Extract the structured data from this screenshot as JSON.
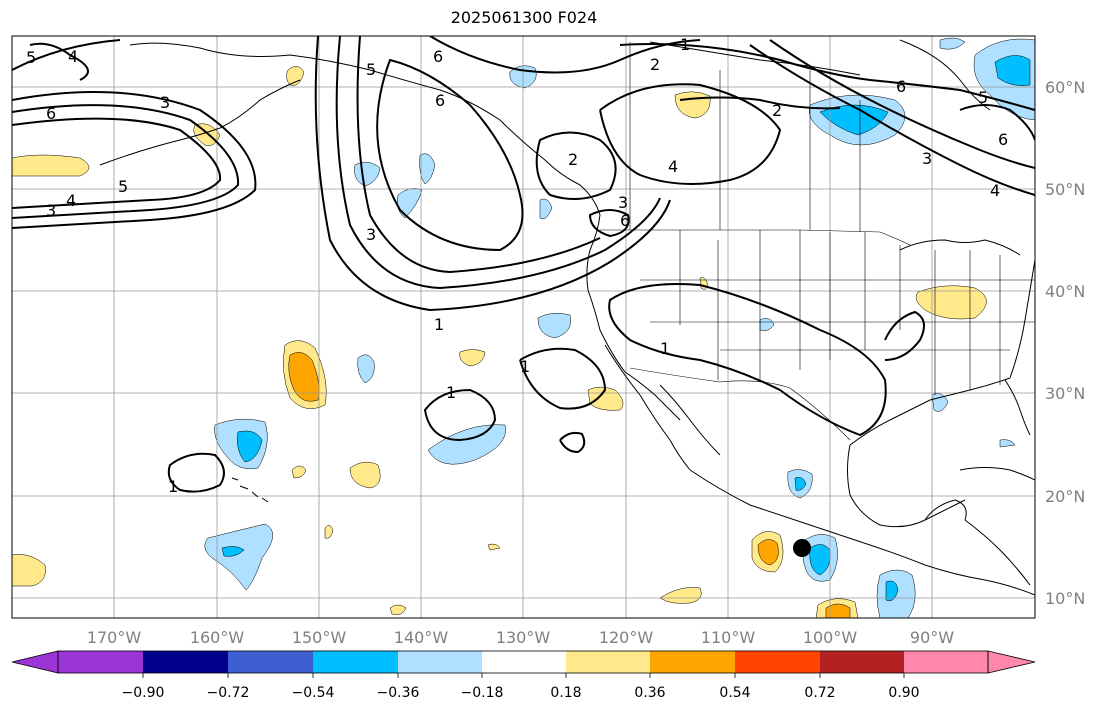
{
  "title": "2025061300 F024",
  "axes": {
    "lat_labels": [
      "60°N",
      "50°N",
      "40°N",
      "30°N",
      "20°N",
      "10°N"
    ],
    "lon_labels": [
      "170°W",
      "160°W",
      "150°W",
      "140°W",
      "130°W",
      "120°W",
      "110°W",
      "100°W",
      "90°W"
    ]
  },
  "colorbar": {
    "colors": [
      "#9b35d6",
      "#00008a",
      "#3d5fcf",
      "#00bfff",
      "#afe0ff",
      "#ffffff",
      "#ffe98a",
      "#ffa500",
      "#ff4500",
      "#b22222",
      "#ff88aa"
    ],
    "tick_labels": [
      "−0.90",
      "−0.72",
      "−0.54",
      "−0.36",
      "−0.18",
      "0.18",
      "0.36",
      "0.54",
      "0.72",
      "0.90"
    ]
  },
  "contour_labels": [
    "5",
    "4",
    "6",
    "3",
    "5",
    "4",
    "6",
    "1",
    "2",
    "5",
    "6",
    "2",
    "3",
    "4",
    "6",
    "3",
    "1",
    "1",
    "1",
    "1",
    "1",
    "2",
    "6",
    "5",
    "3",
    "4",
    "6",
    "3"
  ],
  "marker": "black-dot",
  "shading_colors": {
    "neg_light": "#afe0ff",
    "neg_mid": "#00bfff",
    "pos_light": "#ffe98a",
    "pos_mid": "#ffa500"
  },
  "gridline_color": "#999999",
  "label_color": "#808080"
}
